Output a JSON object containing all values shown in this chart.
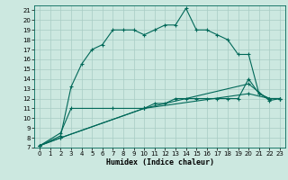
{
  "xlabel": "Humidex (Indice chaleur)",
  "bg_color": "#cce8e0",
  "grid_color": "#a8ccc4",
  "line_color": "#006858",
  "xlim": [
    -0.5,
    23.5
  ],
  "ylim": [
    7,
    21.5
  ],
  "xticks": [
    0,
    1,
    2,
    3,
    4,
    5,
    6,
    7,
    8,
    9,
    10,
    11,
    12,
    13,
    14,
    15,
    16,
    17,
    18,
    19,
    20,
    21,
    22,
    23
  ],
  "yticks": [
    7,
    8,
    9,
    10,
    11,
    12,
    13,
    14,
    15,
    16,
    17,
    18,
    19,
    20,
    21
  ],
  "series1": [
    [
      0,
      7.2
    ],
    [
      2,
      8.2
    ],
    [
      3,
      13.2
    ],
    [
      4,
      15.5
    ],
    [
      5,
      17.0
    ],
    [
      6,
      17.5
    ],
    [
      7,
      19.0
    ],
    [
      8,
      19.0
    ],
    [
      9,
      19.0
    ],
    [
      10,
      18.5
    ],
    [
      11,
      19.0
    ],
    [
      12,
      19.5
    ],
    [
      13,
      19.5
    ],
    [
      14,
      21.2
    ],
    [
      15,
      19.0
    ],
    [
      16,
      19.0
    ],
    [
      17,
      18.5
    ],
    [
      18,
      18.0
    ],
    [
      19,
      16.5
    ],
    [
      20,
      16.5
    ],
    [
      21,
      12.5
    ],
    [
      22,
      12.0
    ],
    [
      23,
      12.0
    ]
  ],
  "series2": [
    [
      0,
      7.2
    ],
    [
      2,
      8.5
    ],
    [
      3,
      11.0
    ],
    [
      7,
      11.0
    ],
    [
      10,
      11.0
    ],
    [
      11,
      11.5
    ],
    [
      12,
      11.5
    ],
    [
      13,
      12.0
    ],
    [
      14,
      12.0
    ],
    [
      15,
      12.0
    ],
    [
      16,
      12.0
    ],
    [
      17,
      12.0
    ],
    [
      18,
      12.0
    ],
    [
      19,
      12.0
    ],
    [
      20,
      14.0
    ],
    [
      21,
      12.5
    ],
    [
      22,
      12.0
    ],
    [
      23,
      12.0
    ]
  ],
  "series3": [
    [
      0,
      7.2
    ],
    [
      2,
      8.0
    ],
    [
      10,
      11.0
    ],
    [
      20,
      13.5
    ],
    [
      22,
      11.8
    ],
    [
      23,
      12.0
    ]
  ],
  "series4": [
    [
      0,
      7.2
    ],
    [
      2,
      8.0
    ],
    [
      10,
      11.0
    ],
    [
      20,
      12.5
    ],
    [
      22,
      12.0
    ],
    [
      23,
      12.0
    ]
  ]
}
